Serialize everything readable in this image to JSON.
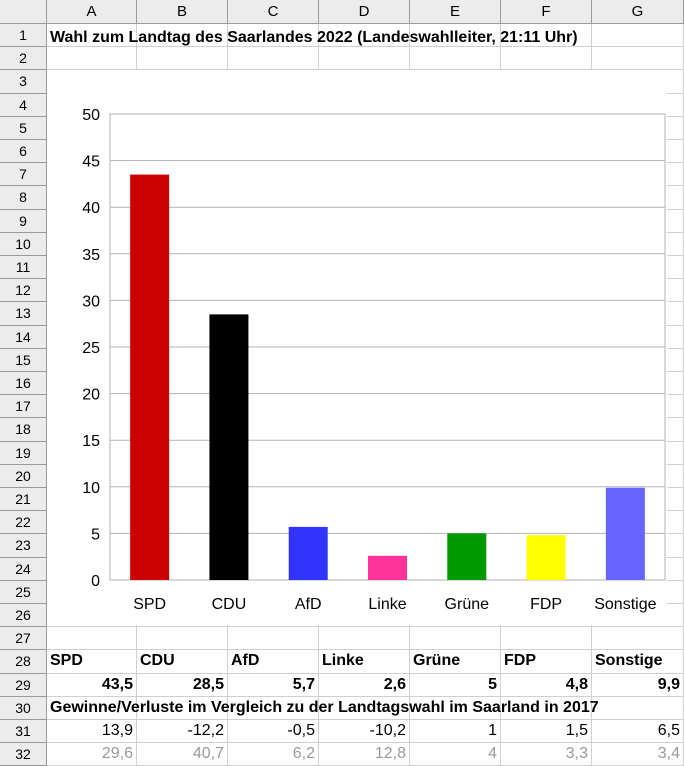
{
  "sheet": {
    "columns": [
      "A",
      "B",
      "C",
      "D",
      "E",
      "F",
      "G"
    ],
    "rows": [
      "1",
      "2",
      "3",
      "4",
      "5",
      "6",
      "7",
      "8",
      "9",
      "10",
      "11",
      "12",
      "13",
      "14",
      "15",
      "16",
      "17",
      "18",
      "19",
      "20",
      "21",
      "22",
      "23",
      "24",
      "25",
      "26",
      "27",
      "28",
      "29",
      "30",
      "31",
      "32"
    ],
    "title": "Wahl zum Landtag des Saarlandes 2022 (Landeswahlleiter, 21:11 Uhr)",
    "row28": [
      "SPD",
      "CDU",
      "AfD",
      "Linke",
      "Grüne",
      "FDP",
      "Sonstige"
    ],
    "row29": [
      "43,5",
      "28,5",
      "5,7",
      "2,6",
      "5",
      "4,8",
      "9,9"
    ],
    "row30": "Gewinne/Verluste im Vergleich zu der Landtagswahl im Saarland in 2017",
    "row31": [
      "13,9",
      "-12,2",
      "-0,5",
      "-10,2",
      "1",
      "1,5",
      "6,5"
    ],
    "row32": [
      "29,6",
      "40,7",
      "6,2",
      "12,8",
      "4",
      "3,3",
      "3,4"
    ]
  },
  "chart_data": {
    "type": "bar",
    "categories": [
      "SPD",
      "CDU",
      "AfD",
      "Linke",
      "Grüne",
      "FDP",
      "Sonstige"
    ],
    "values": [
      43.5,
      28.5,
      5.7,
      2.6,
      5,
      4.8,
      9.9
    ],
    "colors": [
      "#cc0000",
      "#000000",
      "#3333ff",
      "#ff3399",
      "#009900",
      "#ffff00",
      "#6666ff"
    ],
    "ylim": [
      0,
      50
    ],
    "yticks": [
      0,
      5,
      10,
      15,
      20,
      25,
      30,
      35,
      40,
      45,
      50
    ],
    "grid": true,
    "legend": "none"
  }
}
